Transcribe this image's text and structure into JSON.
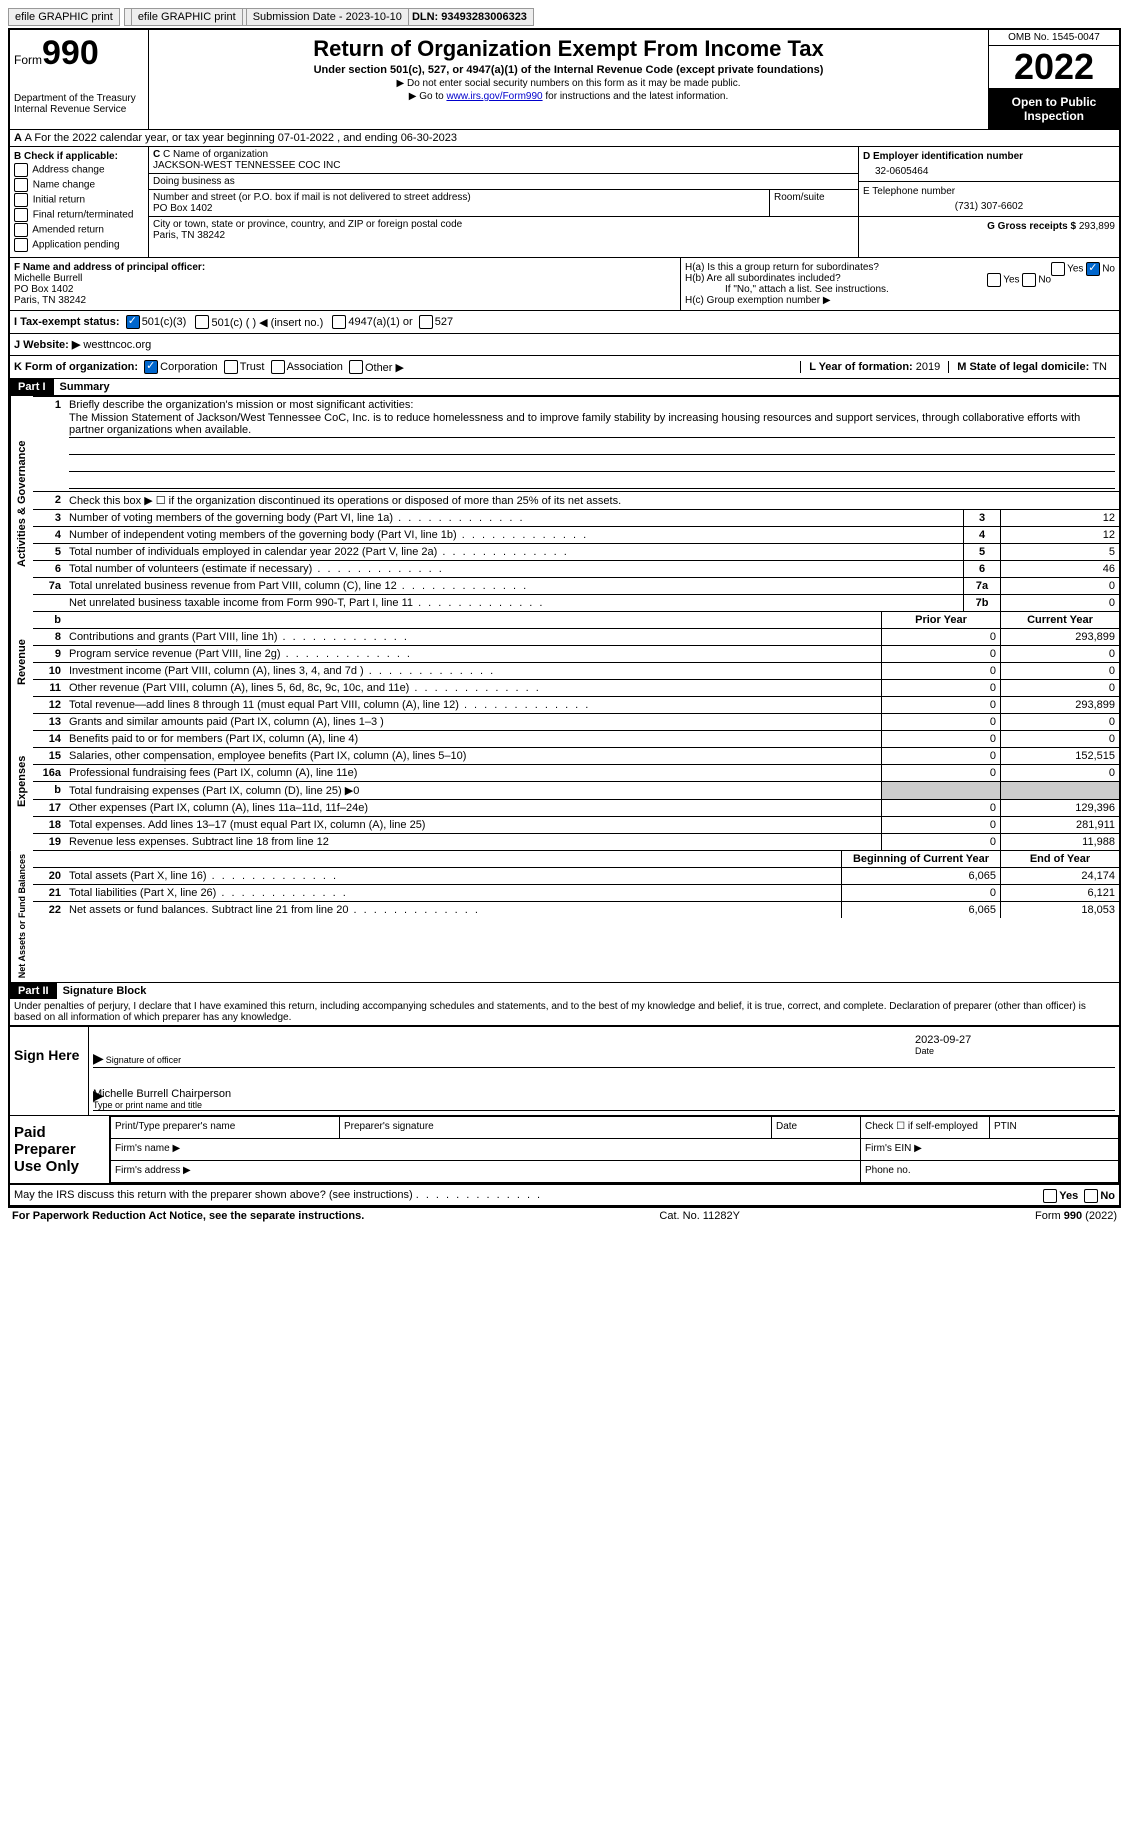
{
  "topbar": {
    "efile_label": "efile GRAPHIC print",
    "submission_label": "Submission Date - 2023-10-10",
    "dln_label": "DLN: 93493283006323"
  },
  "header": {
    "form_prefix": "Form",
    "form_number": "990",
    "dept1": "Department of the Treasury",
    "dept2": "Internal Revenue Service",
    "title": "Return of Organization Exempt From Income Tax",
    "subtitle": "Under section 501(c), 527, or 4947(a)(1) of the Internal Revenue Code (except private foundations)",
    "note1": "▶ Do not enter social security numbers on this form as it may be made public.",
    "note2_pre": "▶ Go to ",
    "note2_link": "www.irs.gov/Form990",
    "note2_post": " for instructions and the latest information.",
    "omb": "OMB No. 1545-0047",
    "year": "2022",
    "inspect": "Open to Public Inspection"
  },
  "row_a": "A For the 2022 calendar year, or tax year beginning 07-01-2022    , and ending 06-30-2023",
  "section_b": {
    "header": "B Check if applicable:",
    "items": [
      "Address change",
      "Name change",
      "Initial return",
      "Final return/terminated",
      "Amended return",
      "Application pending"
    ]
  },
  "section_c": {
    "name_label": "C Name of organization",
    "name": "JACKSON-WEST TENNESSEE COC INC",
    "dba_label": "Doing business as",
    "dba": "",
    "street_label": "Number and street (or P.O. box if mail is not delivered to street address)",
    "street": "PO Box 1402",
    "room_label": "Room/suite",
    "city_label": "City or town, state or province, country, and ZIP or foreign postal code",
    "city": "Paris, TN  38242"
  },
  "section_d": {
    "label": "D Employer identification number",
    "value": "32-0605464"
  },
  "section_e": {
    "label": "E Telephone number",
    "value": "(731) 307-6602"
  },
  "section_g": {
    "label": "G Gross receipts $ ",
    "value": "293,899"
  },
  "section_f": {
    "label": "F Name and address of principal officer:",
    "name": "Michelle Burrell",
    "street": "PO Box 1402",
    "city": "Paris, TN  38242"
  },
  "section_h": {
    "a": "H(a)  Is this a group return for subordinates?",
    "b": "H(b)  Are all subordinates included?",
    "b_note": "If \"No,\" attach a list. See instructions.",
    "c": "H(c)  Group exemption number ▶"
  },
  "row_i": {
    "label": "I   Tax-exempt status:",
    "opt1": "501(c)(3)",
    "opt2": "501(c) (  ) ◀ (insert no.)",
    "opt3": "4947(a)(1) or",
    "opt4": "527"
  },
  "row_j": {
    "label": "J   Website: ▶",
    "value": "westtncoc.org"
  },
  "row_k": {
    "label": "K Form of organization:",
    "opts": [
      "Corporation",
      "Trust",
      "Association",
      "Other ▶"
    ],
    "l_label": "L Year of formation: ",
    "l_value": "2019",
    "m_label": "M State of legal domicile: ",
    "m_value": "TN"
  },
  "part1": {
    "tag": "Part I",
    "title": "Summary",
    "line1_label": "Briefly describe the organization's mission or most significant activities:",
    "mission": "The Mission Statement of Jackson/West Tennessee CoC, Inc. is to reduce homelessness and to improve family stability by increasing housing resources and support services, through collaborative efforts with partner organizations when available.",
    "line2": "Check this box ▶ ☐  if the organization discontinued its operations or disposed of more than 25% of its net assets.",
    "lines_gov": [
      {
        "n": "3",
        "t": "Number of voting members of the governing body (Part VI, line 1a)",
        "b": "3",
        "v": "12"
      },
      {
        "n": "4",
        "t": "Number of independent voting members of the governing body (Part VI, line 1b)",
        "b": "4",
        "v": "12"
      },
      {
        "n": "5",
        "t": "Total number of individuals employed in calendar year 2022 (Part V, line 2a)",
        "b": "5",
        "v": "5"
      },
      {
        "n": "6",
        "t": "Total number of volunteers (estimate if necessary)",
        "b": "6",
        "v": "46"
      },
      {
        "n": "7a",
        "t": "Total unrelated business revenue from Part VIII, column (C), line 12",
        "b": "7a",
        "v": "0"
      },
      {
        "n": "",
        "t": "Net unrelated business taxable income from Form 990-T, Part I, line 11",
        "b": "7b",
        "v": "0"
      }
    ],
    "col_prior": "Prior Year",
    "col_current": "Current Year",
    "lines_rev": [
      {
        "n": "8",
        "t": "Contributions and grants (Part VIII, line 1h)",
        "p": "0",
        "c": "293,899"
      },
      {
        "n": "9",
        "t": "Program service revenue (Part VIII, line 2g)",
        "p": "0",
        "c": "0"
      },
      {
        "n": "10",
        "t": "Investment income (Part VIII, column (A), lines 3, 4, and 7d )",
        "p": "0",
        "c": "0"
      },
      {
        "n": "11",
        "t": "Other revenue (Part VIII, column (A), lines 5, 6d, 8c, 9c, 10c, and 11e)",
        "p": "0",
        "c": "0"
      },
      {
        "n": "12",
        "t": "Total revenue—add lines 8 through 11 (must equal Part VIII, column (A), line 12)",
        "p": "0",
        "c": "293,899"
      }
    ],
    "lines_exp": [
      {
        "n": "13",
        "t": "Grants and similar amounts paid (Part IX, column (A), lines 1–3 )",
        "p": "0",
        "c": "0"
      },
      {
        "n": "14",
        "t": "Benefits paid to or for members (Part IX, column (A), line 4)",
        "p": "0",
        "c": "0"
      },
      {
        "n": "15",
        "t": "Salaries, other compensation, employee benefits (Part IX, column (A), lines 5–10)",
        "p": "0",
        "c": "152,515"
      },
      {
        "n": "16a",
        "t": "Professional fundraising fees (Part IX, column (A), line 11e)",
        "p": "0",
        "c": "0"
      },
      {
        "n": "b",
        "t": "Total fundraising expenses (Part IX, column (D), line 25) ▶0",
        "p": "",
        "c": "",
        "shade": true
      },
      {
        "n": "17",
        "t": "Other expenses (Part IX, column (A), lines 11a–11d, 11f–24e)",
        "p": "0",
        "c": "129,396"
      },
      {
        "n": "18",
        "t": "Total expenses. Add lines 13–17 (must equal Part IX, column (A), line 25)",
        "p": "0",
        "c": "281,911"
      },
      {
        "n": "19",
        "t": "Revenue less expenses. Subtract line 18 from line 12",
        "p": "0",
        "c": "11,988"
      }
    ],
    "col_begin": "Beginning of Current Year",
    "col_end": "End of Year",
    "lines_net": [
      {
        "n": "20",
        "t": "Total assets (Part X, line 16)",
        "p": "6,065",
        "c": "24,174"
      },
      {
        "n": "21",
        "t": "Total liabilities (Part X, line 26)",
        "p": "0",
        "c": "6,121"
      },
      {
        "n": "22",
        "t": "Net assets or fund balances. Subtract line 21 from line 20",
        "p": "6,065",
        "c": "18,053"
      }
    ],
    "vert_gov": "Activities & Governance",
    "vert_rev": "Revenue",
    "vert_exp": "Expenses",
    "vert_net": "Net Assets or Fund Balances"
  },
  "part2": {
    "tag": "Part II",
    "title": "Signature Block",
    "decl": "Under penalties of perjury, I declare that I have examined this return, including accompanying schedules and statements, and to the best of my knowledge and belief, it is true, correct, and complete. Declaration of preparer (other than officer) is based on all information of which preparer has any knowledge.",
    "sign_here": "Sign Here",
    "sig_officer": "Signature of officer",
    "sig_date_label": "Date",
    "sig_date": "2023-09-27",
    "sig_name": "Michelle Burrell Chairperson",
    "sig_name_label": "Type or print name and title",
    "paid": "Paid Preparer Use Only",
    "prep_name": "Print/Type preparer's name",
    "prep_sig": "Preparer's signature",
    "prep_date": "Date",
    "prep_check": "Check ☐ if self-employed",
    "prep_ptin": "PTIN",
    "firm_name": "Firm's name    ▶",
    "firm_ein": "Firm's EIN ▶",
    "firm_addr": "Firm's address ▶",
    "firm_phone": "Phone no."
  },
  "footer": {
    "discuss": "May the IRS discuss this return with the preparer shown above? (see instructions)",
    "yes": "Yes",
    "no": "No",
    "pra": "For Paperwork Reduction Act Notice, see the separate instructions.",
    "cat": "Cat. No. 11282Y",
    "form": "Form 990 (2022)"
  }
}
